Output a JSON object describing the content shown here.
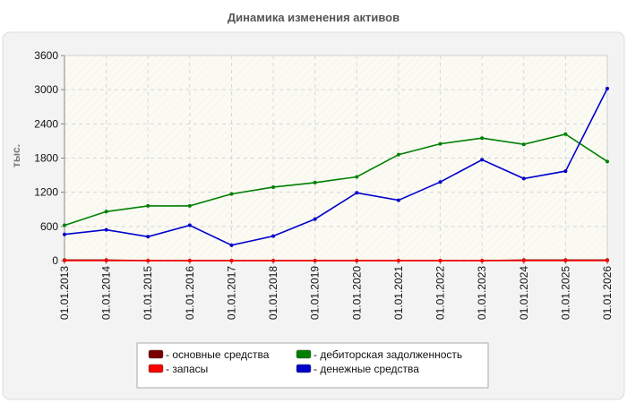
{
  "chart_data": {
    "type": "line",
    "title": "Динамика изменения активов",
    "xlabel": "",
    "ylabel": "тыс.",
    "categories": [
      "01.01.2013",
      "01.01.2014",
      "01.01.2015",
      "01.01.2016",
      "01.01.2017",
      "01.01.2018",
      "01.01.2019",
      "01.01.2020",
      "01.01.2021",
      "01.01.2022",
      "01.01.2023",
      "01.01.2024",
      "01.01.2025",
      "01.01.2026"
    ],
    "ylim": [
      0,
      3600
    ],
    "yticks": [
      0,
      600,
      1200,
      1800,
      2400,
      3000,
      3600
    ],
    "grid": true,
    "legend_position": "bottom",
    "series": [
      {
        "name": "- основные средства",
        "color": "#7a0000",
        "values": [
          10,
          10,
          0,
          0,
          0,
          0,
          0,
          0,
          0,
          0,
          0,
          10,
          10,
          10
        ]
      },
      {
        "name": "- запасы",
        "color": "#ff0000",
        "values": [
          0,
          0,
          0,
          0,
          0,
          0,
          0,
          0,
          0,
          0,
          0,
          0,
          0,
          0
        ]
      },
      {
        "name": "- дебиторская задолженность",
        "color": "#008000",
        "values": [
          620,
          860,
          960,
          960,
          1170,
          1290,
          1370,
          1470,
          1860,
          2050,
          2150,
          2040,
          2220,
          1740
        ]
      },
      {
        "name": "- денежные средства",
        "color": "#0000cc",
        "values": [
          460,
          540,
          420,
          620,
          270,
          430,
          730,
          1190,
          1060,
          1380,
          1770,
          1440,
          1570,
          3020
        ]
      }
    ]
  }
}
